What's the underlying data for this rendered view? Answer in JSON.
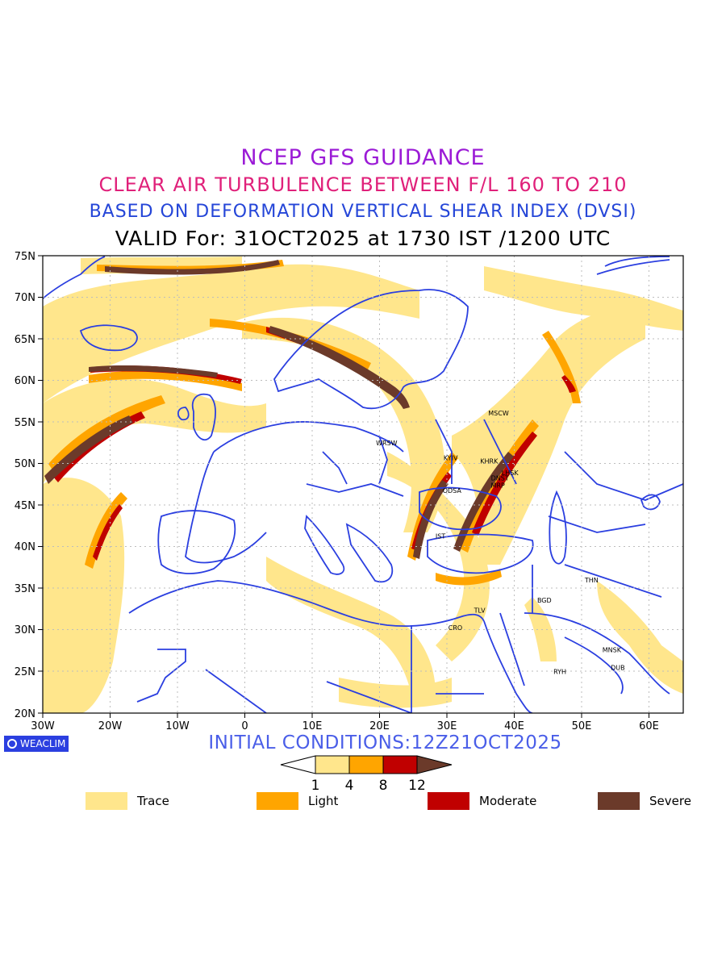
{
  "header": {
    "line1": "NCEP GFS GUIDANCE",
    "line2": "CLEAR AIR TURBULENCE BETWEEN F/L 160 TO 210",
    "line3": "BASED ON DEFORMATION VERTICAL SHEAR INDEX (DVSI)",
    "line4": "VALID For: 31OCT2025 at 1730 IST /1200 UTC"
  },
  "map": {
    "lat_labels": [
      "75N",
      "70N",
      "65N",
      "60N",
      "55N",
      "50N",
      "45N",
      "40N",
      "35N",
      "30N",
      "25N",
      "20N"
    ],
    "lon_labels": [
      "30W",
      "20W",
      "10W",
      "0",
      "10E",
      "20E",
      "30E",
      "40E",
      "50E",
      "60E"
    ],
    "cities": [
      {
        "label": "MSCW",
        "lon": 37.6,
        "lat": 55.8
      },
      {
        "label": "WRSW",
        "lon": 21.0,
        "lat": 52.2
      },
      {
        "label": "KYIV",
        "lon": 30.5,
        "lat": 50.4
      },
      {
        "label": "KHRK",
        "lon": 36.2,
        "lat": 50.0
      },
      {
        "label": "LHSK",
        "lon": 39.3,
        "lat": 48.6
      },
      {
        "label": "DNST",
        "lon": 37.8,
        "lat": 48.0
      },
      {
        "label": "MRP",
        "lon": 37.5,
        "lat": 47.1
      },
      {
        "label": "ODSA",
        "lon": 30.7,
        "lat": 46.5
      },
      {
        "label": "IST",
        "lon": 29.0,
        "lat": 41.0
      },
      {
        "label": "THN",
        "lon": 51.4,
        "lat": 35.7
      },
      {
        "label": "BGD",
        "lon": 44.4,
        "lat": 33.3
      },
      {
        "label": "TLV",
        "lon": 34.8,
        "lat": 32.1
      },
      {
        "label": "CRO",
        "lon": 31.2,
        "lat": 30.0
      },
      {
        "label": "MNSK",
        "lon": 54.4,
        "lat": 27.3
      },
      {
        "label": "DUB",
        "lon": 55.3,
        "lat": 25.2
      },
      {
        "label": "RYH",
        "lon": 46.7,
        "lat": 24.7
      }
    ],
    "colors": {
      "trace": "#ffe68c",
      "light": "#ffa500",
      "moderate": "#c00000",
      "severe": "#6b3a2a",
      "coastline": "#2b3fe0"
    }
  },
  "brand": {
    "label": "WEACLIM",
    "icon": "weaclim-logo-icon"
  },
  "initial_conditions": "INITIAL CONDITIONS:12Z21OCT2025",
  "colorbar": {
    "ticks": [
      "1",
      "4",
      "8",
      "12"
    ]
  },
  "legend": [
    {
      "label": "Trace",
      "color": "#ffe68c"
    },
    {
      "label": "Light",
      "color": "#ffa500"
    },
    {
      "label": "Moderate",
      "color": "#c00000"
    },
    {
      "label": "Severe",
      "color": "#6b3a2a"
    }
  ]
}
